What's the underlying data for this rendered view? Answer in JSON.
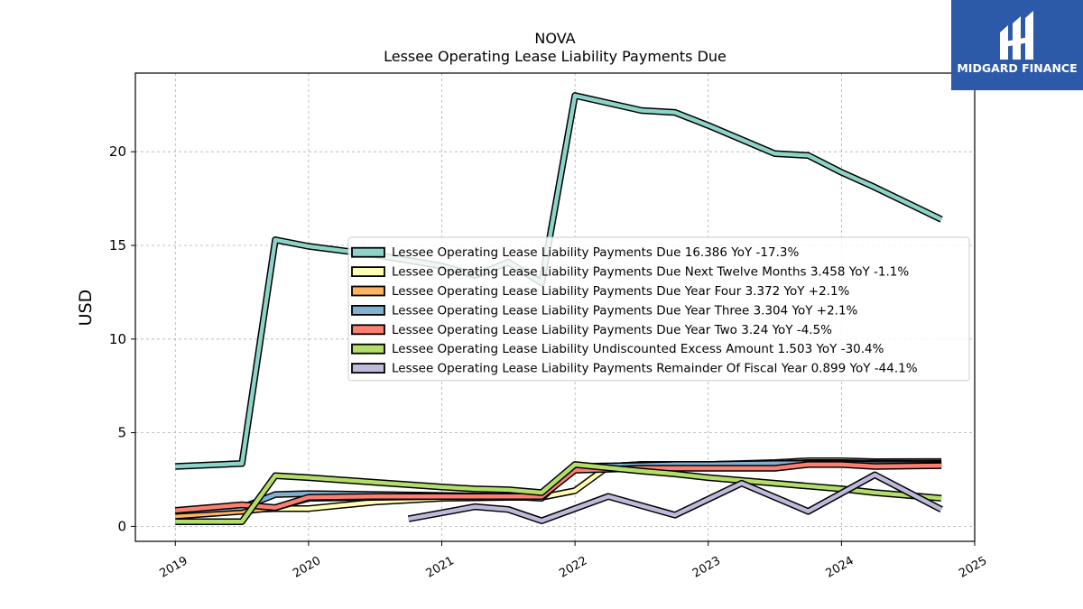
{
  "logo": {
    "text": "MIDGARD FINANCE",
    "bg_color": "#2c5aa8"
  },
  "chart_data": {
    "type": "line",
    "title": "NOVA",
    "subtitle": "Lessee Operating Lease Liability Payments Due",
    "ylabel": "USD",
    "xlabel": "",
    "xlim": [
      2018.7,
      2025.0
    ],
    "ylim": [
      -0.8,
      24.2
    ],
    "x_ticks": [
      "2019",
      "2020",
      "2021",
      "2022",
      "2023",
      "2024",
      "2025"
    ],
    "y_ticks": [
      0,
      5,
      10,
      15,
      20
    ],
    "grid": true,
    "legend_position": "center-right",
    "series": [
      {
        "name": "Lessee Operating Lease Liability Payments Due  16.386 YoY -17.3%",
        "color": "#8dd3c7",
        "points": [
          [
            2019.0,
            3.2
          ],
          [
            2019.5,
            3.35
          ],
          [
            2019.75,
            15.3
          ],
          [
            2020.0,
            14.95
          ],
          [
            2020.5,
            14.5
          ],
          [
            2021.0,
            13.9
          ],
          [
            2021.25,
            13.4
          ],
          [
            2021.5,
            14.1
          ],
          [
            2021.75,
            13.0
          ],
          [
            2022.0,
            23.0
          ],
          [
            2022.5,
            22.2
          ],
          [
            2022.75,
            22.1
          ],
          [
            2023.0,
            21.4
          ],
          [
            2023.5,
            19.9
          ],
          [
            2023.75,
            19.8
          ],
          [
            2024.0,
            18.9
          ],
          [
            2024.25,
            18.1
          ],
          [
            2024.75,
            16.386
          ]
        ]
      },
      {
        "name": "Lessee Operating Lease Liability Payments Due Next Twelve Months  3.458 YoY -1.1%",
        "color": "#ffffb3",
        "points": [
          [
            2019.0,
            0.6
          ],
          [
            2019.5,
            0.9
          ],
          [
            2019.75,
            0.95
          ],
          [
            2020.0,
            0.95
          ],
          [
            2020.5,
            1.3
          ],
          [
            2021.0,
            1.5
          ],
          [
            2021.5,
            1.55
          ],
          [
            2021.75,
            1.55
          ],
          [
            2022.0,
            1.9
          ],
          [
            2022.25,
            3.2
          ],
          [
            2022.5,
            3.3
          ],
          [
            2022.75,
            3.3
          ],
          [
            2023.0,
            3.3
          ],
          [
            2023.5,
            3.4
          ],
          [
            2023.75,
            3.5
          ],
          [
            2024.0,
            3.5
          ],
          [
            2024.25,
            3.45
          ],
          [
            2024.75,
            3.458
          ]
        ]
      },
      {
        "name": "Lessee Operating Lease Liability Payments Due Year Four  3.372 YoY +2.1%",
        "color": "#fdb462",
        "points": [
          [
            2019.0,
            0.55
          ],
          [
            2019.5,
            0.8
          ],
          [
            2019.75,
            1.0
          ],
          [
            2020.0,
            1.5
          ],
          [
            2020.5,
            1.55
          ],
          [
            2021.0,
            1.6
          ],
          [
            2021.5,
            1.55
          ],
          [
            2021.75,
            1.55
          ],
          [
            2022.0,
            3.1
          ],
          [
            2022.5,
            3.3
          ],
          [
            2022.75,
            3.3
          ],
          [
            2023.0,
            3.3
          ],
          [
            2023.5,
            3.35
          ],
          [
            2023.75,
            3.4
          ],
          [
            2024.0,
            3.4
          ],
          [
            2024.25,
            3.37
          ],
          [
            2024.75,
            3.372
          ]
        ]
      },
      {
        "name": "Lessee Operating Lease Liability Payments Due Year Three  3.304 YoY +2.1%",
        "color": "#80b1d3",
        "points": [
          [
            2019.0,
            0.8
          ],
          [
            2019.5,
            1.0
          ],
          [
            2019.75,
            1.7
          ],
          [
            2020.0,
            1.75
          ],
          [
            2020.5,
            1.7
          ],
          [
            2021.0,
            1.65
          ],
          [
            2021.5,
            1.6
          ],
          [
            2021.75,
            1.5
          ],
          [
            2022.0,
            3.2
          ],
          [
            2022.5,
            3.25
          ],
          [
            2022.75,
            3.3
          ],
          [
            2023.0,
            3.3
          ],
          [
            2023.5,
            3.35
          ],
          [
            2023.75,
            3.35
          ],
          [
            2024.0,
            3.35
          ],
          [
            2024.25,
            3.3
          ],
          [
            2024.75,
            3.304
          ]
        ]
      },
      {
        "name": "Lessee Operating Lease Liability Payments Due Year Two  3.24 YoY -4.5%",
        "color": "#fb8072",
        "points": [
          [
            2019.0,
            0.85
          ],
          [
            2019.5,
            1.15
          ],
          [
            2019.75,
            1.0
          ],
          [
            2020.0,
            1.55
          ],
          [
            2020.5,
            1.6
          ],
          [
            2021.0,
            1.6
          ],
          [
            2021.25,
            1.6
          ],
          [
            2021.5,
            1.6
          ],
          [
            2021.75,
            1.6
          ],
          [
            2022.0,
            3.0
          ],
          [
            2022.5,
            3.1
          ],
          [
            2022.75,
            3.1
          ],
          [
            2023.0,
            3.1
          ],
          [
            2023.5,
            3.1
          ],
          [
            2023.75,
            3.3
          ],
          [
            2024.0,
            3.3
          ],
          [
            2024.25,
            3.2
          ],
          [
            2024.75,
            3.24
          ]
        ]
      },
      {
        "name": "Lessee Operating Lease Liability Undiscounted Excess Amount  1.503 YoY -30.4%",
        "color": "#b3de69",
        "points": [
          [
            2019.0,
            0.25
          ],
          [
            2019.5,
            0.25
          ],
          [
            2019.75,
            2.7
          ],
          [
            2020.0,
            2.6
          ],
          [
            2020.5,
            2.35
          ],
          [
            2021.0,
            2.1
          ],
          [
            2021.25,
            2.0
          ],
          [
            2021.5,
            1.95
          ],
          [
            2021.75,
            1.8
          ],
          [
            2022.0,
            3.3
          ],
          [
            2022.5,
            2.95
          ],
          [
            2022.75,
            2.8
          ],
          [
            2023.0,
            2.6
          ],
          [
            2023.5,
            2.3
          ],
          [
            2023.75,
            2.15
          ],
          [
            2024.0,
            2.0
          ],
          [
            2024.25,
            1.8
          ],
          [
            2024.75,
            1.503
          ]
        ]
      },
      {
        "name": "Lessee Operating Lease Liability Payments Remainder Of Fiscal Year  0.899 YoY -44.1%",
        "color": "#bebada",
        "points": [
          [
            2020.75,
            0.4
          ],
          [
            2021.25,
            1.05
          ],
          [
            2021.5,
            0.9
          ],
          [
            2021.75,
            0.3
          ],
          [
            2022.25,
            1.6
          ],
          [
            2022.75,
            0.6
          ],
          [
            2023.25,
            2.3
          ],
          [
            2023.75,
            0.8
          ],
          [
            2024.25,
            2.75
          ],
          [
            2024.75,
            0.899
          ]
        ]
      }
    ]
  }
}
